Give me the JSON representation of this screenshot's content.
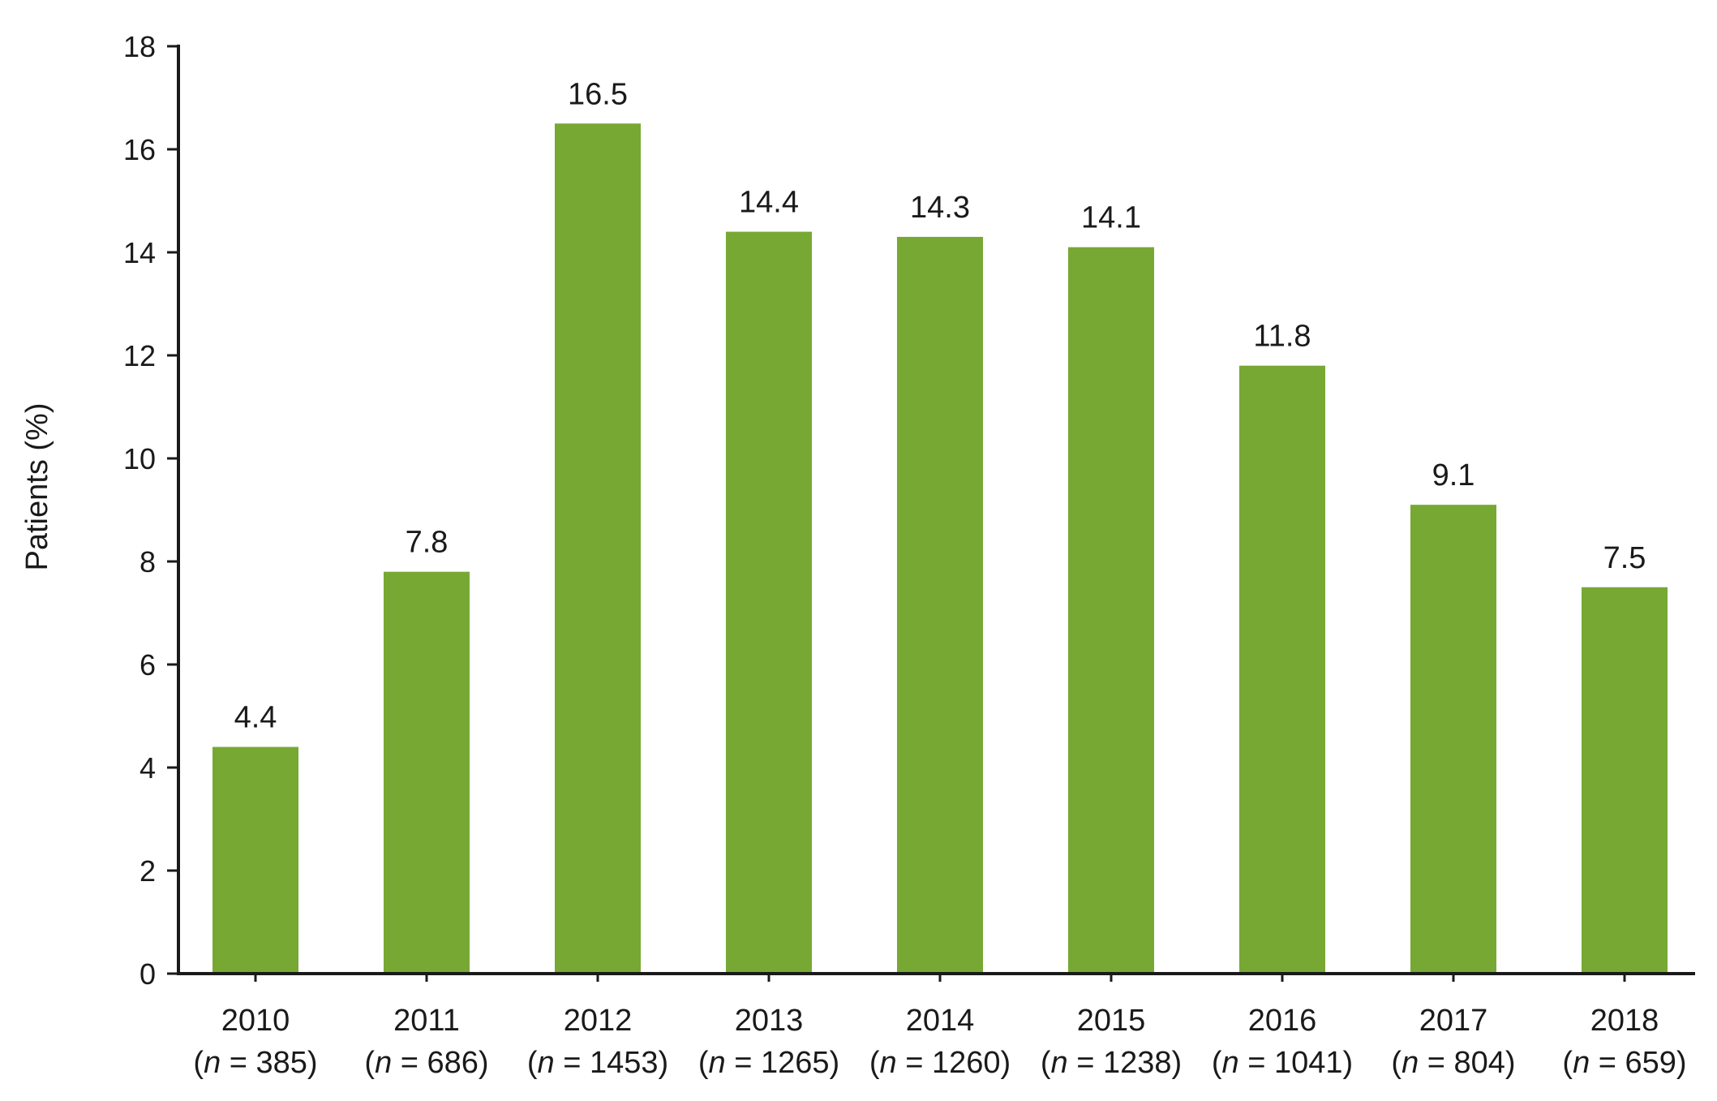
{
  "chart_data": {
    "type": "bar",
    "title": "",
    "xlabel": "",
    "ylabel": "Patients (%)",
    "ylim": [
      0,
      18
    ],
    "yticks": [
      0,
      2,
      4,
      6,
      8,
      10,
      12,
      14,
      16,
      18
    ],
    "grid": false,
    "legend": "none",
    "categories": [
      "2010",
      "2011",
      "2012",
      "2013",
      "2014",
      "2015",
      "2016",
      "2017",
      "2018"
    ],
    "category_sublabels": [
      {
        "prefix": "(",
        "n": "n",
        "rest": " = 385)"
      },
      {
        "prefix": "(",
        "n": "n",
        "rest": " = 686)"
      },
      {
        "prefix": "(",
        "n": "n",
        "rest": " = 1453)"
      },
      {
        "prefix": "(",
        "n": "n",
        "rest": " = 1265)"
      },
      {
        "prefix": "(",
        "n": "n",
        "rest": " = 1260)"
      },
      {
        "prefix": "(",
        "n": "n",
        "rest": " = 1238)"
      },
      {
        "prefix": "(",
        "n": "n",
        "rest": " = 1041)"
      },
      {
        "prefix": "(",
        "n": "n",
        "rest": " = 804)"
      },
      {
        "prefix": "(",
        "n": "n",
        "rest": " = 659)"
      }
    ],
    "values": [
      4.4,
      7.8,
      16.5,
      14.4,
      14.3,
      14.1,
      11.8,
      9.1,
      7.5
    ],
    "value_labels": [
      "4.4",
      "7.8",
      "16.5",
      "14.4",
      "14.3",
      "14.1",
      "11.8",
      "9.1",
      "7.5"
    ],
    "colors": {
      "bar": "#77a834",
      "axis": "#1a1a1a",
      "text": "#1a1a1a"
    }
  }
}
